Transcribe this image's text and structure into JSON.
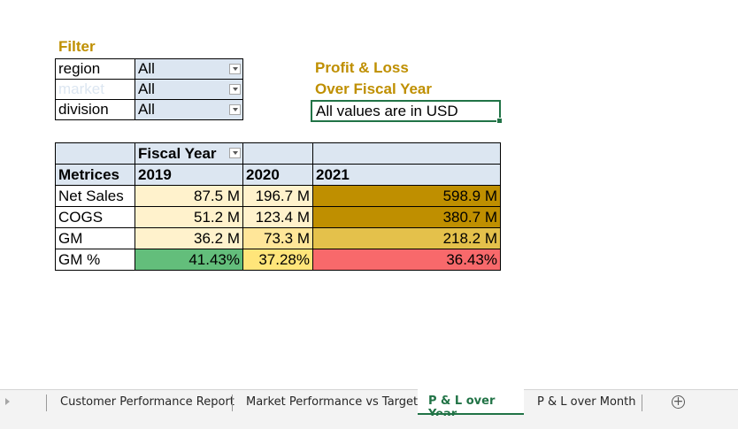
{
  "filter": {
    "heading": "Filter",
    "rows": [
      {
        "label": "region",
        "value": "All"
      },
      {
        "label": "market",
        "value": "All"
      },
      {
        "label": "division",
        "value": "All"
      }
    ]
  },
  "report": {
    "title_line1": "Profit & Loss",
    "title_line2": "Over Fiscal Year",
    "note": "All values are in USD"
  },
  "pivot": {
    "column_field": "Fiscal Year",
    "row_header": "Metrices",
    "years": [
      "2019",
      "2020",
      "2021"
    ],
    "rows": [
      {
        "metric": "Net Sales",
        "values": [
          "87.5 M",
          "196.7 M",
          "598.9 M"
        ],
        "colors": [
          "#fff2cc",
          "#fff2cc",
          "#bf8f00"
        ]
      },
      {
        "metric": "COGS",
        "values": [
          "51.2 M",
          "123.4 M",
          "380.7 M"
        ],
        "colors": [
          "#fff2cc",
          "#fff2cc",
          "#bf8f00"
        ]
      },
      {
        "metric": "GM",
        "values": [
          "36.2 M",
          "73.3 M",
          "218.2 M"
        ],
        "colors": [
          "#fff2cc",
          "#ffe699",
          "#e4c14b"
        ]
      },
      {
        "metric": "GM %",
        "values": [
          "41.43%",
          "37.28%",
          "36.43%"
        ],
        "colors": [
          "#63be7b",
          "#ffe57a",
          "#f8696b"
        ]
      }
    ]
  },
  "sheet_tabs": {
    "tabs": [
      {
        "label": "Customer Performance Report",
        "active": false
      },
      {
        "label": "Market Performance vs Target",
        "active": false
      },
      {
        "label": "P & L over Year",
        "active": true
      },
      {
        "label": "P & L over Month",
        "active": false
      }
    ],
    "active_color": "#217346"
  }
}
